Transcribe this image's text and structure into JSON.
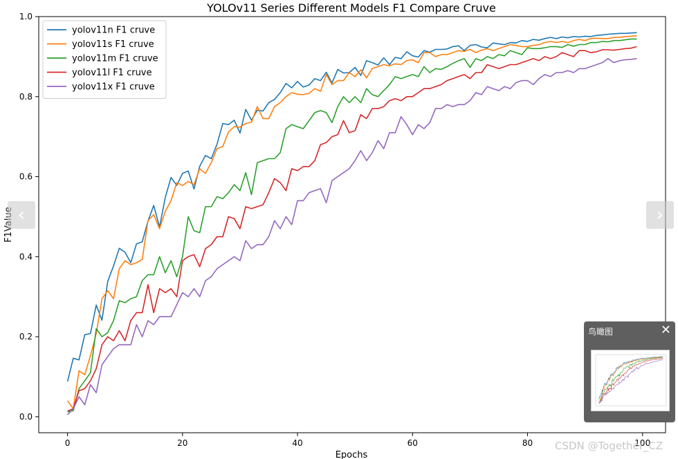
{
  "nav": {
    "prev_label": "‹",
    "next_label": "›"
  },
  "overview": {
    "title": "鸟瞰图",
    "close_label": "✕"
  },
  "watermark": "CSDN @Together_CZ",
  "chart_data": {
    "type": "line",
    "title": "YOLOv11 Series Different Models F1 Compare Cruve",
    "xlabel": "Epochs",
    "ylabel": "F1Value",
    "xlim": [
      -5,
      104
    ],
    "ylim": [
      -0.04,
      1.0
    ],
    "xticks": [
      0,
      20,
      40,
      60,
      80,
      100
    ],
    "yticks": [
      0.0,
      0.2,
      0.4,
      0.6,
      0.8,
      1.0
    ],
    "legend_position": "top-left",
    "grid": false,
    "x": [
      0,
      1,
      2,
      3,
      4,
      5,
      6,
      7,
      8,
      9,
      10,
      11,
      12,
      13,
      14,
      15,
      16,
      17,
      18,
      19,
      20,
      21,
      22,
      23,
      24,
      25,
      26,
      27,
      28,
      29,
      30,
      31,
      32,
      33,
      34,
      35,
      36,
      37,
      38,
      39,
      40,
      41,
      42,
      43,
      44,
      45,
      46,
      47,
      48,
      49,
      50,
      51,
      52,
      53,
      54,
      55,
      56,
      57,
      58,
      59,
      60,
      61,
      62,
      63,
      64,
      65,
      66,
      67,
      68,
      69,
      70,
      71,
      72,
      73,
      74,
      75,
      76,
      77,
      78,
      79,
      80,
      81,
      82,
      83,
      84,
      85,
      86,
      87,
      88,
      89,
      90,
      91,
      92,
      93,
      94,
      95,
      96,
      97,
      98,
      99
    ],
    "series": [
      {
        "name": "yolov11n F1 cruve",
        "color": "#1f77b4",
        "values": [
          0.088,
          0.146,
          0.142,
          0.205,
          0.208,
          0.279,
          0.241,
          0.338,
          0.377,
          0.421,
          0.411,
          0.385,
          0.432,
          0.437,
          0.489,
          0.528,
          0.474,
          0.548,
          0.598,
          0.578,
          0.608,
          0.614,
          0.569,
          0.626,
          0.653,
          0.645,
          0.681,
          0.733,
          0.73,
          0.741,
          0.709,
          0.768,
          0.741,
          0.766,
          0.764,
          0.785,
          0.793,
          0.81,
          0.833,
          0.822,
          0.838,
          0.824,
          0.829,
          0.845,
          0.84,
          0.861,
          0.834,
          0.868,
          0.859,
          0.86,
          0.873,
          0.853,
          0.89,
          0.885,
          0.879,
          0.897,
          0.88,
          0.898,
          0.895,
          0.912,
          0.902,
          0.899,
          0.915,
          0.911,
          0.918,
          0.918,
          0.919,
          0.925,
          0.927,
          0.915,
          0.928,
          0.93,
          0.924,
          0.922,
          0.934,
          0.932,
          0.93,
          0.935,
          0.934,
          0.94,
          0.938,
          0.943,
          0.941,
          0.945,
          0.948,
          0.945,
          0.949,
          0.947,
          0.95,
          0.949,
          0.951,
          0.95,
          0.953,
          0.954,
          0.956,
          0.957,
          0.958,
          0.958,
          0.959,
          0.96
        ]
      },
      {
        "name": "yolov11s F1 cruve",
        "color": "#ff7f0e",
        "values": [
          0.04,
          0.02,
          0.115,
          0.105,
          0.153,
          0.208,
          0.295,
          0.315,
          0.295,
          0.37,
          0.39,
          0.38,
          0.385,
          0.393,
          0.49,
          0.505,
          0.47,
          0.513,
          0.54,
          0.585,
          0.578,
          0.588,
          0.58,
          0.62,
          0.608,
          0.635,
          0.67,
          0.675,
          0.712,
          0.725,
          0.724,
          0.733,
          0.736,
          0.775,
          0.745,
          0.745,
          0.775,
          0.785,
          0.8,
          0.81,
          0.806,
          0.805,
          0.808,
          0.82,
          0.813,
          0.855,
          0.83,
          0.84,
          0.84,
          0.86,
          0.85,
          0.867,
          0.847,
          0.87,
          0.875,
          0.88,
          0.877,
          0.882,
          0.88,
          0.89,
          0.892,
          0.885,
          0.91,
          0.91,
          0.9,
          0.905,
          0.905,
          0.91,
          0.915,
          0.913,
          0.918,
          0.91,
          0.916,
          0.92,
          0.915,
          0.92,
          0.925,
          0.93,
          0.928,
          0.925,
          0.925,
          0.928,
          0.93,
          0.935,
          0.938,
          0.935,
          0.938,
          0.935,
          0.94,
          0.943,
          0.94,
          0.945,
          0.946,
          0.945,
          0.945,
          0.948,
          0.948,
          0.95,
          0.951,
          0.952
        ]
      },
      {
        "name": "yolov11m F1 cruve",
        "color": "#2ca02c",
        "values": [
          0.012,
          0.015,
          0.07,
          0.09,
          0.11,
          0.22,
          0.2,
          0.21,
          0.24,
          0.29,
          0.285,
          0.295,
          0.3,
          0.34,
          0.355,
          0.355,
          0.4,
          0.36,
          0.39,
          0.35,
          0.4,
          0.5,
          0.465,
          0.46,
          0.525,
          0.525,
          0.55,
          0.545,
          0.56,
          0.58,
          0.565,
          0.61,
          0.555,
          0.635,
          0.64,
          0.645,
          0.645,
          0.66,
          0.72,
          0.73,
          0.725,
          0.72,
          0.74,
          0.76,
          0.765,
          0.76,
          0.735,
          0.775,
          0.8,
          0.785,
          0.8,
          0.785,
          0.82,
          0.805,
          0.8,
          0.815,
          0.83,
          0.85,
          0.845,
          0.85,
          0.855,
          0.85,
          0.875,
          0.86,
          0.87,
          0.868,
          0.875,
          0.883,
          0.89,
          0.895,
          0.873,
          0.895,
          0.89,
          0.9,
          0.895,
          0.905,
          0.902,
          0.915,
          0.91,
          0.905,
          0.922,
          0.92,
          0.92,
          0.922,
          0.925,
          0.925,
          0.923,
          0.93,
          0.926,
          0.93,
          0.93,
          0.935,
          0.935,
          0.938,
          0.937,
          0.94,
          0.94,
          0.942,
          0.944,
          0.944
        ]
      },
      {
        "name": "yolov11l F1 cruve",
        "color": "#d62728",
        "values": [
          0.014,
          0.02,
          0.065,
          0.07,
          0.09,
          0.12,
          0.18,
          0.2,
          0.19,
          0.215,
          0.19,
          0.24,
          0.26,
          0.26,
          0.33,
          0.26,
          0.32,
          0.31,
          0.32,
          0.3,
          0.39,
          0.4,
          0.405,
          0.375,
          0.42,
          0.43,
          0.45,
          0.45,
          0.5,
          0.495,
          0.47,
          0.525,
          0.52,
          0.525,
          0.53,
          0.56,
          0.595,
          0.585,
          0.565,
          0.62,
          0.615,
          0.625,
          0.625,
          0.64,
          0.68,
          0.685,
          0.7,
          0.705,
          0.74,
          0.71,
          0.715,
          0.755,
          0.745,
          0.77,
          0.77,
          0.775,
          0.79,
          0.795,
          0.79,
          0.8,
          0.8,
          0.81,
          0.82,
          0.82,
          0.825,
          0.83,
          0.84,
          0.845,
          0.85,
          0.855,
          0.845,
          0.86,
          0.86,
          0.88,
          0.875,
          0.87,
          0.875,
          0.88,
          0.88,
          0.885,
          0.89,
          0.895,
          0.89,
          0.9,
          0.895,
          0.9,
          0.91,
          0.905,
          0.9,
          0.915,
          0.915,
          0.91,
          0.912,
          0.917,
          0.917,
          0.916,
          0.918,
          0.92,
          0.921,
          0.925
        ]
      },
      {
        "name": "yolov11x F1 cruve",
        "color": "#9467bd",
        "values": [
          0.005,
          0.02,
          0.05,
          0.03,
          0.08,
          0.06,
          0.13,
          0.15,
          0.17,
          0.18,
          0.18,
          0.18,
          0.23,
          0.2,
          0.24,
          0.23,
          0.25,
          0.25,
          0.25,
          0.28,
          0.31,
          0.3,
          0.32,
          0.3,
          0.34,
          0.35,
          0.37,
          0.38,
          0.39,
          0.4,
          0.39,
          0.44,
          0.42,
          0.43,
          0.43,
          0.45,
          0.49,
          0.47,
          0.5,
          0.48,
          0.54,
          0.54,
          0.56,
          0.565,
          0.57,
          0.535,
          0.59,
          0.6,
          0.61,
          0.62,
          0.64,
          0.665,
          0.64,
          0.66,
          0.69,
          0.67,
          0.71,
          0.71,
          0.75,
          0.73,
          0.705,
          0.73,
          0.72,
          0.735,
          0.77,
          0.77,
          0.78,
          0.775,
          0.78,
          0.78,
          0.79,
          0.81,
          0.805,
          0.825,
          0.82,
          0.815,
          0.825,
          0.82,
          0.835,
          0.84,
          0.84,
          0.83,
          0.845,
          0.855,
          0.85,
          0.86,
          0.86,
          0.865,
          0.86,
          0.87,
          0.87,
          0.875,
          0.88,
          0.885,
          0.895,
          0.885,
          0.89,
          0.892,
          0.893,
          0.895
        ]
      }
    ]
  }
}
